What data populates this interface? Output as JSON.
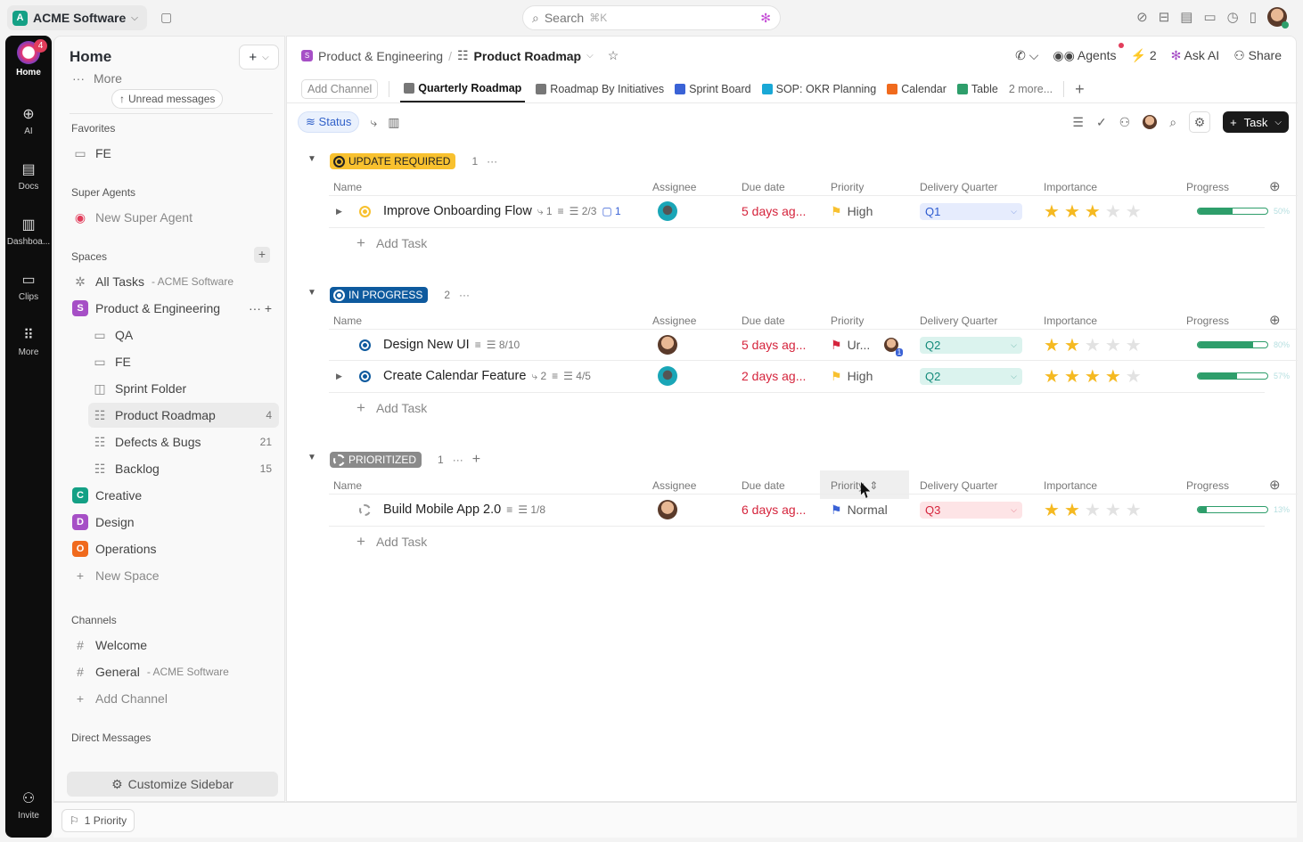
{
  "topbar": {
    "workspace": "ACME Software",
    "workspace_initial": "A",
    "search_placeholder": "Search",
    "search_shortcut": "⌘K"
  },
  "rail": {
    "home_badge": "4",
    "items": [
      {
        "label": "Home",
        "icon": "home-icon"
      },
      {
        "label": "AI",
        "icon": "ai-icon"
      },
      {
        "label": "Docs",
        "icon": "docs-icon"
      },
      {
        "label": "Dashboa...",
        "icon": "dashboard-icon"
      },
      {
        "label": "Clips",
        "icon": "clips-icon"
      },
      {
        "label": "More",
        "icon": "grid-icon"
      }
    ],
    "invite": "Invite"
  },
  "sidebar": {
    "title": "Home",
    "more": "More",
    "unread": "Unread messages",
    "favorites_label": "Favorites",
    "favorites": [
      {
        "label": "FE"
      }
    ],
    "agents_label": "Super Agents",
    "agents": [
      {
        "label": "New Super Agent"
      }
    ],
    "spaces_label": "Spaces",
    "spaces": [
      {
        "label": "All Tasks",
        "sub": "- ACME Software",
        "kind": "all"
      },
      {
        "label": "Product & Engineering",
        "initial": "S",
        "color": "#a64fc6",
        "kind": "space"
      },
      {
        "label": "QA",
        "kind": "folder",
        "indent": 1
      },
      {
        "label": "FE",
        "kind": "folder",
        "indent": 1
      },
      {
        "label": "Sprint Folder",
        "kind": "sprint",
        "indent": 1
      },
      {
        "label": "Product Roadmap",
        "count": "4",
        "kind": "list",
        "indent": 1,
        "active": true
      },
      {
        "label": "Defects & Bugs",
        "count": "21",
        "kind": "list",
        "indent": 1
      },
      {
        "label": "Backlog",
        "count": "15",
        "kind": "list",
        "indent": 1
      },
      {
        "label": "Creative",
        "initial": "C",
        "color": "#14a085",
        "kind": "space"
      },
      {
        "label": "Design",
        "initial": "D",
        "color": "#a64fc6",
        "kind": "space"
      },
      {
        "label": "Operations",
        "initial": "O",
        "color": "#f06a1d",
        "kind": "space"
      },
      {
        "label": "New Space",
        "kind": "add"
      }
    ],
    "channels_label": "Channels",
    "channels": [
      {
        "label": "Welcome",
        "kind": "hash"
      },
      {
        "label": "General",
        "sub": "- ACME Software",
        "kind": "hash2"
      },
      {
        "label": "Add Channel",
        "kind": "add"
      }
    ],
    "dm_label": "Direct Messages",
    "customize": "Customize Sidebar"
  },
  "header": {
    "space": "Product & Engineering",
    "space_initial": "S",
    "list": "Product Roadmap",
    "agents": "Agents",
    "automations": "2",
    "ask_ai": "Ask AI",
    "share": "Share"
  },
  "tabs": {
    "add_channel": "Add Channel",
    "items": [
      {
        "label": "Quarterly Roadmap",
        "active": true,
        "color": "#777"
      },
      {
        "label": "Roadmap By Initiatives",
        "color": "#777"
      },
      {
        "label": "Sprint Board",
        "color": "#3a62d6"
      },
      {
        "label": "SOP: OKR Planning",
        "color": "#19a8d6"
      },
      {
        "label": "Calendar",
        "color": "#f06a1d"
      },
      {
        "label": "Table",
        "color": "#2e9e6b"
      }
    ],
    "more": "2 more..."
  },
  "toolbar": {
    "status": "Status",
    "task": "Task"
  },
  "columns": [
    "Name",
    "Assignee",
    "Due date",
    "Priority",
    "Delivery Quarter",
    "Importance",
    "Progress"
  ],
  "groups": [
    {
      "status": "UPDATE REQUIRED",
      "count": "1",
      "bg": "#f8c12f",
      "fg": "#222",
      "ring": "#f8c12f",
      "tasks": [
        {
          "name": "Improve Onboarding Flow",
          "expand": true,
          "deps": "1",
          "desc": true,
          "subtasks": "2/3",
          "comments": "1",
          "due": "5 days ag...",
          "priority": "High",
          "flag": "#f8c12f",
          "quarter": "Q1",
          "stars": 3,
          "progress": 50,
          "avatar": "teal"
        }
      ]
    },
    {
      "status": "IN PROGRESS",
      "count": "2",
      "bg": "#0e5a9e",
      "fg": "#fff",
      "ring": "#0e5a9e",
      "tasks": [
        {
          "name": "Design New UI",
          "desc": true,
          "subtasks": "8/10",
          "due": "5 days ag...",
          "priority": "Ur...",
          "flag": "#d5243c",
          "watcher_count": "1",
          "quarter": "Q2",
          "stars": 2,
          "progress": 80,
          "avatar": "face"
        },
        {
          "name": "Create Calendar Feature",
          "expand": true,
          "deps": "2",
          "desc": true,
          "subtasks": "4/5",
          "due": "2 days ag...",
          "priority": "High",
          "flag": "#f8c12f",
          "quarter": "Q2",
          "stars": 4,
          "progress": 57,
          "avatar": "teal"
        }
      ]
    },
    {
      "status": "PRIORITIZED",
      "count": "1",
      "bg": "#8a8a8a",
      "fg": "#fff",
      "ring": "#999",
      "dashed": true,
      "tasks": [
        {
          "name": "Build Mobile App 2.0",
          "desc": true,
          "subtasks": "1/8",
          "due": "6 days ag...",
          "priority": "Normal",
          "flag": "#3a62d6",
          "quarter": "Q3",
          "stars": 2,
          "progress": 13,
          "avatar": "face"
        }
      ]
    }
  ],
  "add_task": "Add Task",
  "quarter_colors": {
    "Q1": {
      "bg": "#e6ecfd",
      "fg": "#2d5bd0"
    },
    "Q2": {
      "bg": "#dbf3ee",
      "fg": "#138a7a"
    },
    "Q3": {
      "bg": "#fde4e6",
      "fg": "#d5243c"
    }
  },
  "bottom": {
    "priority_chip": "1 Priority"
  }
}
